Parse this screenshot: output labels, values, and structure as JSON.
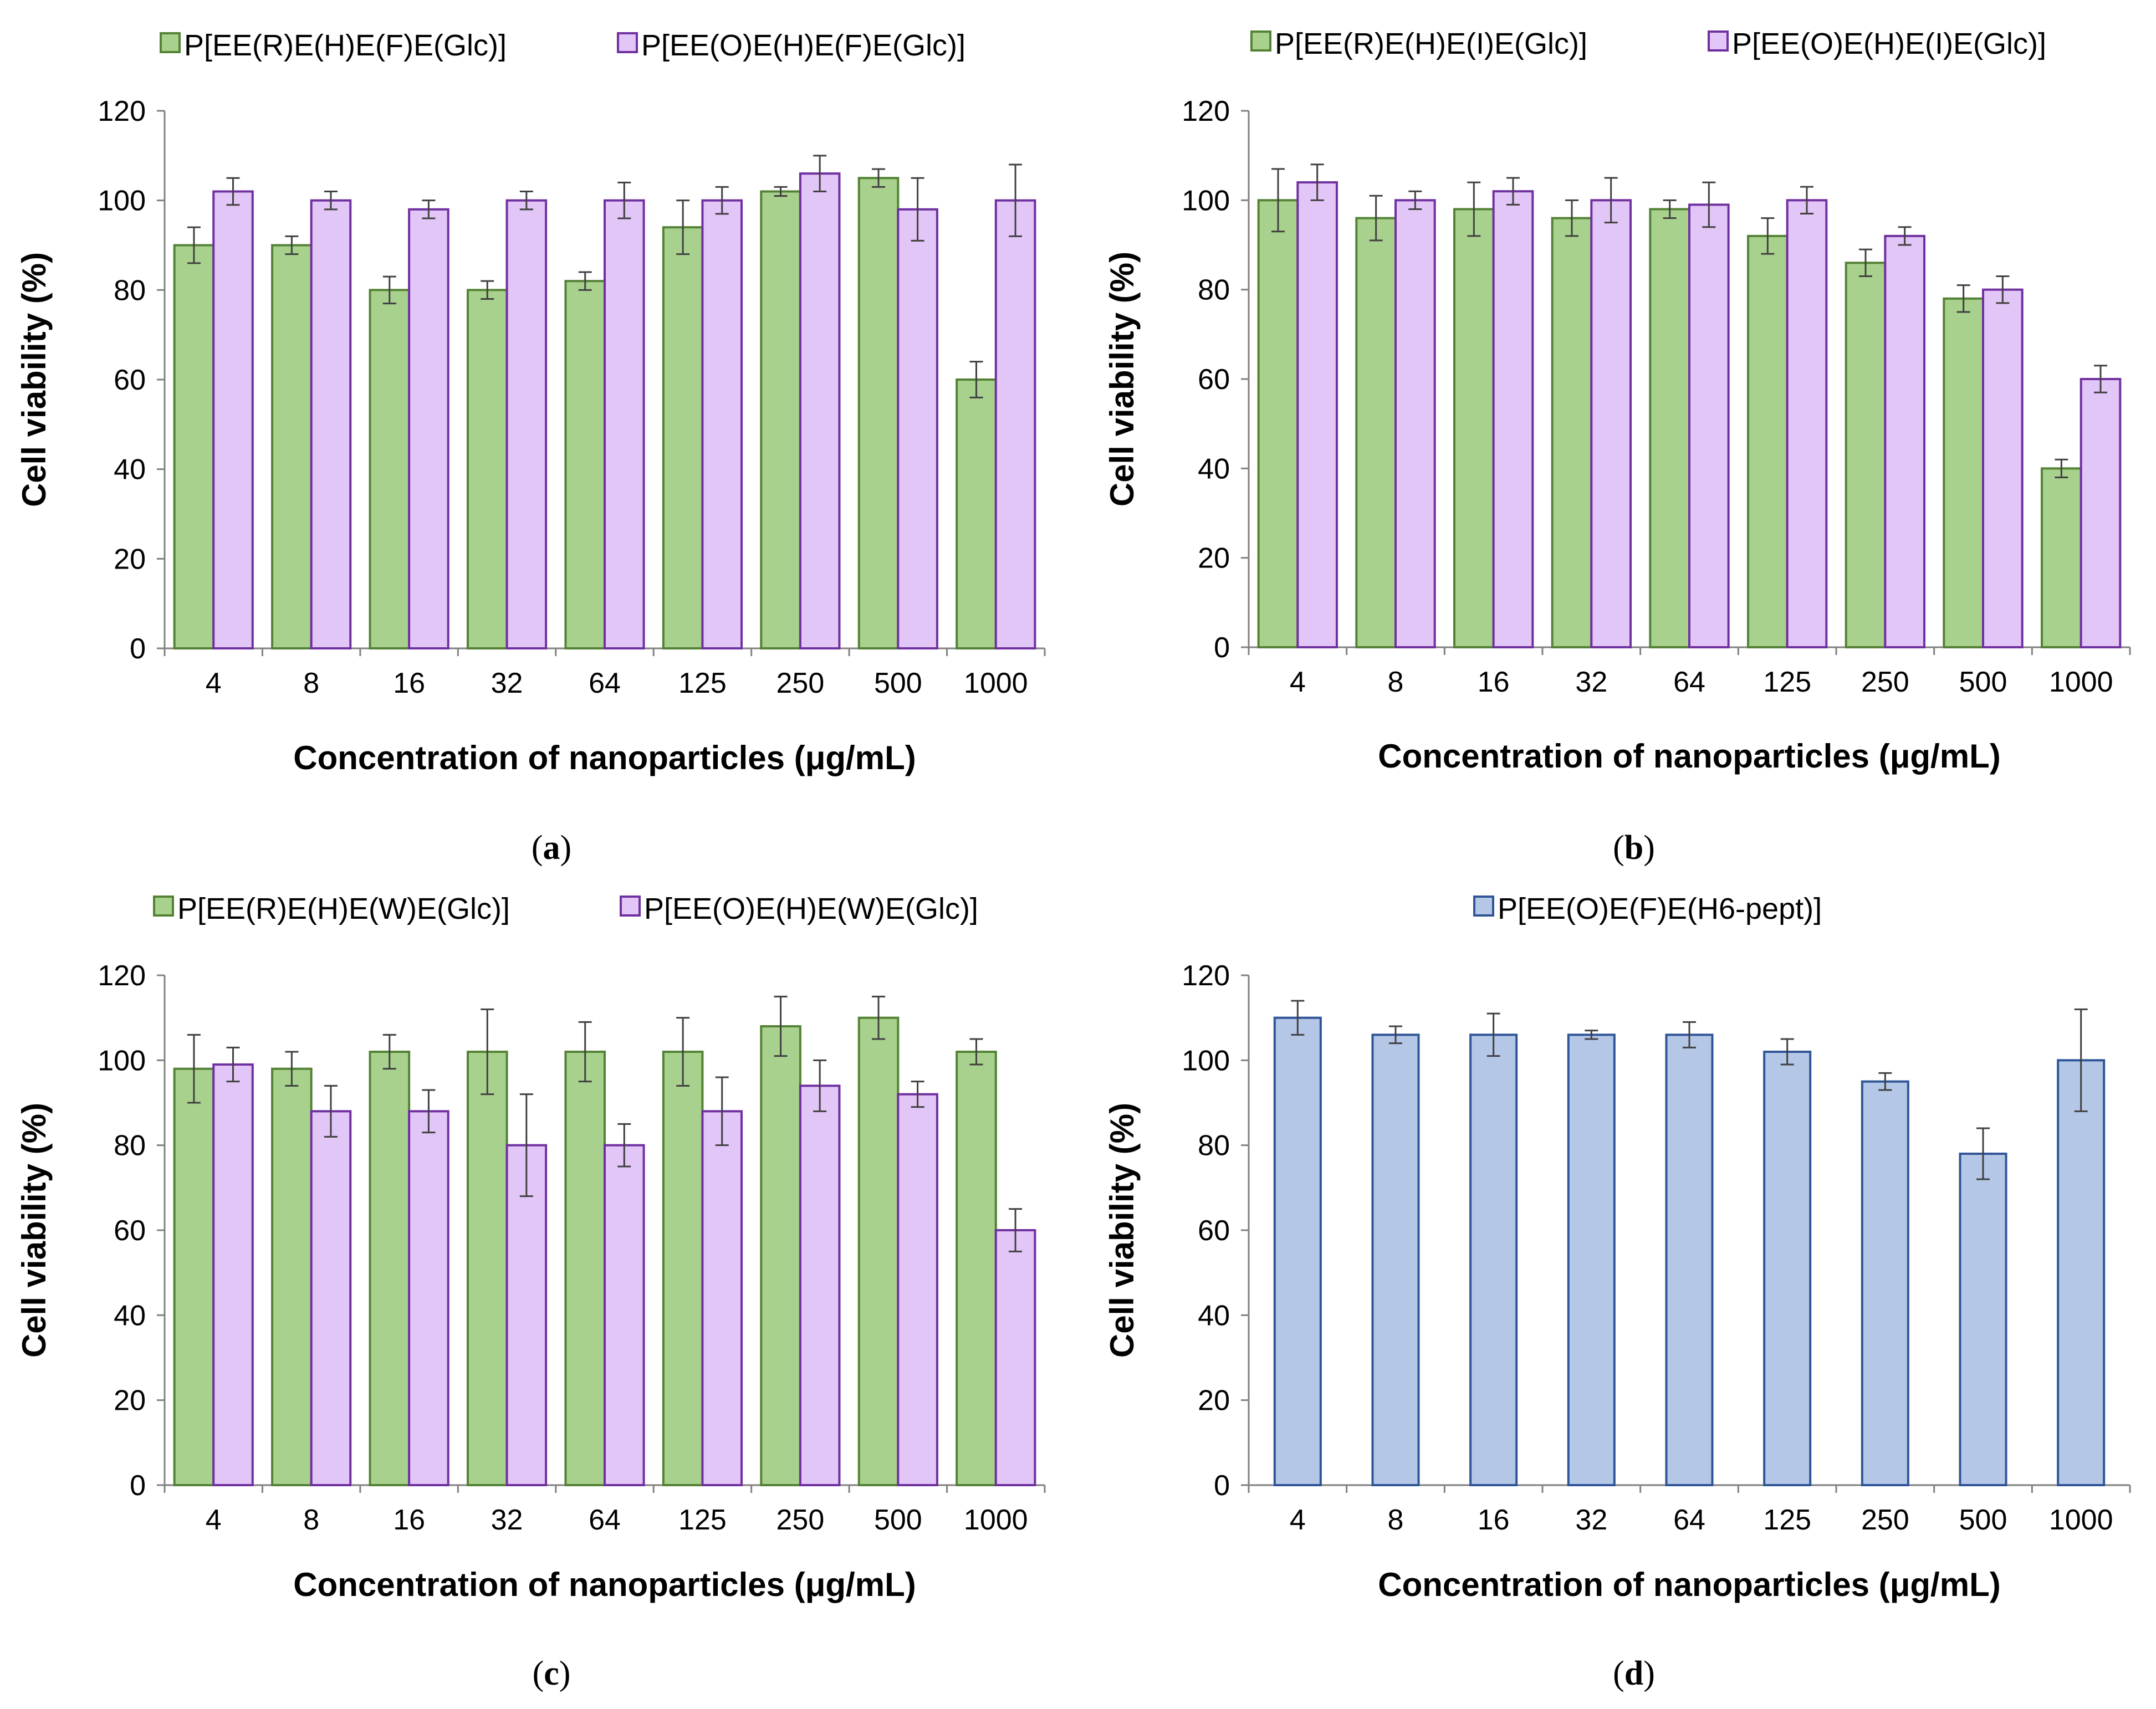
{
  "colors": {
    "green_fill": "#a9d18e",
    "green_edge": "#548235",
    "purple_fill": "#e2c6f7",
    "purple_edge": "#7030a0",
    "blue_fill": "#b4c7e7",
    "blue_edge": "#2f5597",
    "axis": "#808080",
    "error_bar": "#404040"
  },
  "chart_data": [
    {
      "panel": "a",
      "panel_label": {
        "open": "(",
        "letter": "a",
        "close": ")"
      },
      "type": "bar",
      "categories": [
        "4",
        "8",
        "16",
        "32",
        "64",
        "125",
        "250",
        "500",
        "1000"
      ],
      "series": [
        {
          "name": "P[EE(R)E(H)E(F)E(Glc)]",
          "color": "green",
          "values": [
            90,
            90,
            80,
            80,
            82,
            94,
            102,
            105,
            60
          ],
          "errors": [
            4,
            2,
            3,
            2,
            2,
            6,
            1,
            2,
            4
          ]
        },
        {
          "name": "P[EE(O)E(H)E(F)E(Glc)]",
          "color": "purple",
          "values": [
            102,
            100,
            98,
            100,
            100,
            100,
            106,
            98,
            100
          ],
          "errors": [
            3,
            2,
            2,
            2,
            4,
            3,
            4,
            7,
            8
          ]
        }
      ],
      "xlabel": "Concentration of nanoparticles (μg/mL)",
      "ylabel": "Cell viability (%)",
      "ylim": [
        0,
        120
      ],
      "yticks": [
        "0",
        "20",
        "40",
        "60",
        "80",
        "100",
        "120"
      ],
      "legend": "top"
    },
    {
      "panel": "b",
      "panel_label": {
        "open": "(",
        "letter": "b",
        "close": ")"
      },
      "type": "bar",
      "categories": [
        "4",
        "8",
        "16",
        "32",
        "64",
        "125",
        "250",
        "500",
        "1000"
      ],
      "series": [
        {
          "name": "P[EE(R)E(H)E(I)E(Glc)]",
          "color": "green",
          "values": [
            100,
            96,
            98,
            96,
            98,
            92,
            86,
            78,
            40
          ],
          "errors": [
            7,
            5,
            6,
            4,
            2,
            4,
            3,
            3,
            2
          ]
        },
        {
          "name": "P[EE(O)E(H)E(I)E(Glc)]",
          "color": "purple",
          "values": [
            104,
            100,
            102,
            100,
            99,
            100,
            92,
            80,
            60
          ],
          "errors": [
            4,
            2,
            3,
            5,
            5,
            3,
            2,
            3,
            3
          ]
        }
      ],
      "xlabel": "Concentration of nanoparticles (μg/mL)",
      "ylabel": "Cell viability (%)",
      "ylim": [
        0,
        120
      ],
      "yticks": [
        "0",
        "20",
        "40",
        "60",
        "80",
        "100",
        "120"
      ],
      "legend": "top"
    },
    {
      "panel": "c",
      "panel_label": {
        "open": "(",
        "letter": "c",
        "close": ")"
      },
      "type": "bar",
      "categories": [
        "4",
        "8",
        "16",
        "32",
        "64",
        "125",
        "250",
        "500",
        "1000"
      ],
      "series": [
        {
          "name": "P[EE(R)E(H)E(W)E(Glc)]",
          "color": "green",
          "values": [
            98,
            98,
            102,
            102,
            102,
            102,
            108,
            110,
            102
          ],
          "errors": [
            8,
            4,
            4,
            10,
            7,
            8,
            7,
            5,
            3
          ]
        },
        {
          "name": "P[EE(O)E(H)E(W)E(Glc)]",
          "color": "purple",
          "values": [
            99,
            88,
            88,
            80,
            80,
            88,
            94,
            92,
            60
          ],
          "errors": [
            4,
            6,
            5,
            12,
            5,
            8,
            6,
            3,
            5
          ]
        }
      ],
      "xlabel": "Concentration of nanoparticles (μg/mL)",
      "ylabel": "Cell viability (%)",
      "ylim": [
        0,
        120
      ],
      "yticks": [
        "0",
        "20",
        "40",
        "60",
        "80",
        "100",
        "120"
      ],
      "legend": "top"
    },
    {
      "panel": "d",
      "panel_label": {
        "open": "(",
        "letter": "d",
        "close": ")"
      },
      "type": "bar",
      "categories": [
        "4",
        "8",
        "16",
        "32",
        "64",
        "125",
        "250",
        "500",
        "1000"
      ],
      "series": [
        {
          "name": "P[EE(O)E(F)E(H6-pept)]",
          "color": "blue",
          "values": [
            110,
            106,
            106,
            106,
            106,
            102,
            95,
            78,
            100
          ],
          "errors": [
            4,
            2,
            5,
            1,
            3,
            3,
            2,
            6,
            12
          ]
        }
      ],
      "xlabel": "Concentration of nanoparticles (μg/mL)",
      "ylabel": "Cell viability (%)",
      "ylim": [
        0,
        120
      ],
      "yticks": [
        "0",
        "20",
        "40",
        "60",
        "80",
        "100",
        "120"
      ],
      "legend": "top"
    }
  ]
}
